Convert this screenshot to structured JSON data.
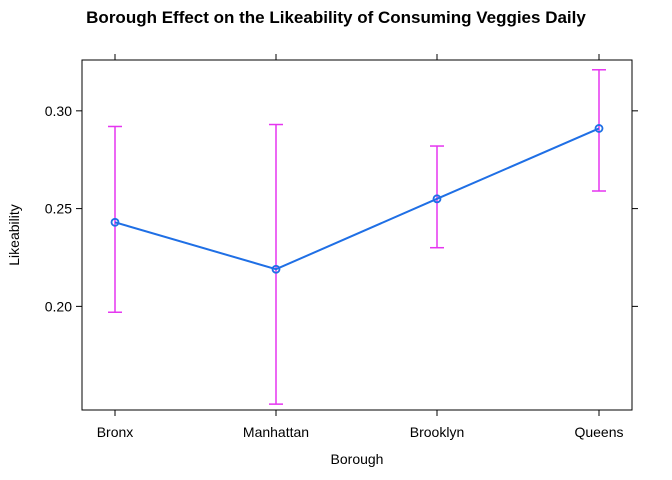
{
  "chart_data": {
    "type": "line",
    "title": "Borough Effect on the Likeability of Consuming Veggies Daily",
    "xlabel": "Borough",
    "ylabel": "Likeability",
    "categories": [
      "Bronx",
      "Manhattan",
      "Brooklyn",
      "Queens"
    ],
    "values": [
      0.243,
      0.219,
      0.255,
      0.291
    ],
    "error_upper": [
      0.292,
      0.293,
      0.282,
      0.321
    ],
    "error_lower": [
      0.197,
      0.15,
      0.23,
      0.259
    ],
    "yticks": [
      0.2,
      0.25,
      0.3
    ],
    "ytick_labels": [
      "0.20",
      "0.25",
      "0.30"
    ],
    "ylim": [
      0.147,
      0.326
    ],
    "grid": false,
    "colors": {
      "line": "#1f6fe5",
      "point": "#1f6fe5",
      "error_bar": "#e535f0",
      "frame": "#000000"
    }
  }
}
